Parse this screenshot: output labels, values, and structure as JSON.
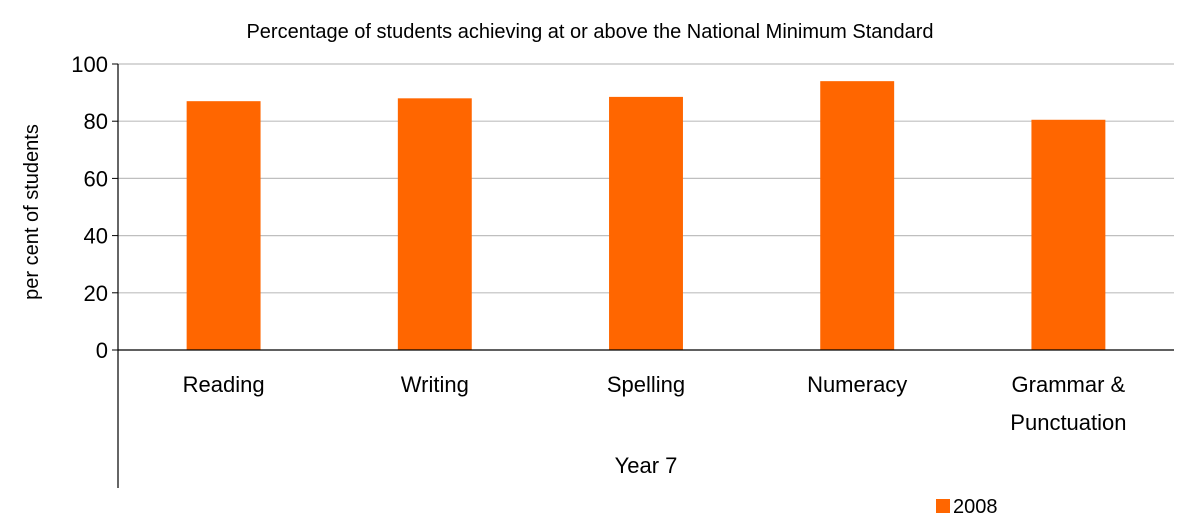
{
  "chart_data": {
    "type": "bar",
    "title": "Percentage of students achieving at or above the National Minimum Standard",
    "ylabel": "per cent of students",
    "group_label": "Year 7",
    "categories": [
      "Reading",
      "Writing",
      "Spelling",
      "Numeracy",
      "Grammar & Punctuation"
    ],
    "category_lines": [
      [
        "Reading"
      ],
      [
        "Writing"
      ],
      [
        "Spelling"
      ],
      [
        "Numeracy"
      ],
      [
        "Grammar &",
        "Punctuation"
      ]
    ],
    "series": [
      {
        "name": "2008",
        "values": [
          87,
          88,
          88.5,
          94,
          80.5
        ],
        "color": "#FF6600"
      }
    ],
    "ylim": [
      0,
      100
    ],
    "yticks": [
      0,
      20,
      40,
      60,
      80,
      100
    ],
    "grid": true,
    "legend_position": "bottom-right"
  }
}
